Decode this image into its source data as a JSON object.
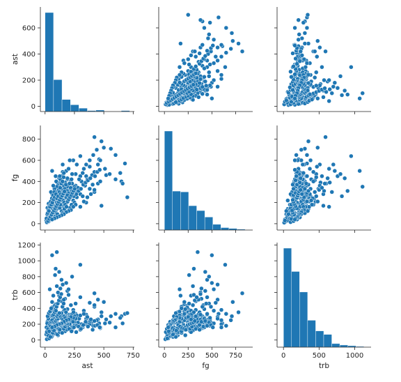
{
  "chart_data": {
    "type": "scatter",
    "variables": [
      "ast",
      "fg",
      "trb"
    ],
    "axis_labels": {
      "ast": "ast",
      "fg": "fg",
      "trb": "trb"
    },
    "ranges": {
      "ast": {
        "lim": [
          -40,
          760
        ],
        "ticks": [
          0,
          250,
          500,
          750
        ],
        "row_ticks": [
          0,
          200,
          400,
          600
        ]
      },
      "fg": {
        "lim": [
          -60,
          930
        ],
        "ticks": [
          0,
          250,
          500,
          750
        ],
        "row_ticks": [
          0,
          200,
          400,
          600,
          800
        ]
      },
      "trb": {
        "lim": [
          -90,
          1230
        ],
        "ticks": [
          0,
          500,
          1000
        ],
        "row_ticks": [
          0,
          200,
          400,
          600,
          800,
          1000,
          1200
        ]
      }
    },
    "histograms": {
      "ast": {
        "edges": [
          0,
          72,
          144,
          216,
          288,
          360,
          432,
          504,
          576,
          648,
          720
        ],
        "counts": [
          205,
          66,
          25,
          14,
          7,
          2,
          3,
          0,
          0,
          2
        ]
      },
      "fg": {
        "edges": [
          0,
          85,
          170,
          255,
          340,
          425,
          510,
          595,
          680,
          765,
          850
        ],
        "counts": [
          122,
          48,
          47,
          30,
          24,
          16,
          7,
          3,
          2,
          1
        ]
      },
      "trb": {
        "edges": [
          0,
          113,
          226,
          339,
          452,
          565,
          678,
          791,
          904,
          1017,
          1130
        ],
        "counts": [
          140,
          107,
          78,
          38,
          23,
          18,
          5,
          3,
          2,
          1
        ]
      }
    },
    "points": [
      [
        110,
        220,
        60
      ],
      [
        200,
        330,
        210
      ],
      [
        80,
        150,
        100
      ],
      [
        300,
        280,
        130
      ],
      [
        120,
        350,
        300
      ],
      [
        60,
        200,
        200
      ],
      [
        25,
        40,
        20
      ],
      [
        180,
        190,
        310
      ],
      [
        350,
        450,
        320
      ],
      [
        450,
        380,
        260
      ],
      [
        90,
        450,
        330
      ],
      [
        160,
        230,
        370
      ],
      [
        230,
        260,
        130
      ],
      [
        40,
        110,
        110
      ],
      [
        140,
        120,
        300
      ],
      [
        260,
        360,
        330
      ],
      [
        190,
        420,
        390
      ],
      [
        95,
        300,
        230
      ],
      [
        310,
        400,
        200
      ],
      [
        70,
        180,
        270
      ],
      [
        50,
        80,
        120
      ],
      [
        130,
        240,
        180
      ],
      [
        210,
        290,
        260
      ],
      [
        160,
        160,
        140
      ],
      [
        280,
        340,
        220
      ],
      [
        380,
        330,
        250
      ],
      [
        65,
        260,
        380
      ],
      [
        35,
        70,
        150
      ],
      [
        100,
        140,
        350
      ],
      [
        150,
        310,
        240
      ],
      [
        240,
        220,
        170
      ],
      [
        55,
        130,
        300
      ],
      [
        120,
        280,
        560
      ],
      [
        170,
        390,
        520
      ],
      [
        220,
        410,
        440
      ],
      [
        90,
        210,
        450
      ],
      [
        140,
        330,
        490
      ],
      [
        70,
        170,
        560
      ],
      [
        190,
        430,
        620
      ],
      [
        110,
        380,
        600
      ],
      [
        260,
        470,
        460
      ],
      [
        80,
        240,
        430
      ],
      [
        300,
        450,
        540
      ],
      [
        160,
        360,
        510
      ],
      [
        60,
        210,
        480
      ],
      [
        200,
        310,
        570
      ],
      [
        130,
        390,
        650
      ],
      [
        100,
        300,
        680
      ],
      [
        180,
        500,
        720
      ],
      [
        140,
        450,
        760
      ],
      [
        85,
        260,
        820
      ],
      [
        230,
        470,
        800
      ],
      [
        40,
        160,
        640
      ],
      [
        120,
        430,
        860
      ],
      [
        90,
        310,
        900
      ],
      [
        60,
        500,
        1070
      ],
      [
        100,
        350,
        1110
      ],
      [
        300,
        640,
        950
      ],
      [
        150,
        560,
        700
      ],
      [
        200,
        520,
        640
      ],
      [
        450,
        560,
        510
      ],
      [
        380,
        540,
        470
      ],
      [
        420,
        490,
        420
      ],
      [
        500,
        720,
        480
      ],
      [
        420,
        820,
        590
      ],
      [
        480,
        780,
        350
      ],
      [
        560,
        710,
        300
      ],
      [
        600,
        650,
        330
      ],
      [
        680,
        570,
        330
      ],
      [
        650,
        400,
        300
      ],
      [
        700,
        250,
        340
      ],
      [
        480,
        170,
        300
      ],
      [
        420,
        300,
        440
      ],
      [
        350,
        200,
        240
      ],
      [
        470,
        400,
        150
      ],
      [
        520,
        460,
        260
      ],
      [
        460,
        610,
        210
      ],
      [
        400,
        460,
        230
      ],
      [
        330,
        520,
        370
      ],
      [
        270,
        560,
        290
      ],
      [
        240,
        600,
        380
      ],
      [
        210,
        600,
        250
      ],
      [
        150,
        490,
        220
      ],
      [
        130,
        420,
        170
      ],
      [
        110,
        250,
        160
      ],
      [
        60,
        60,
        50
      ],
      [
        30,
        20,
        30
      ],
      [
        15,
        10,
        10
      ],
      [
        10,
        30,
        70
      ],
      [
        45,
        50,
        90
      ],
      [
        70,
        100,
        160
      ],
      [
        90,
        120,
        80
      ],
      [
        20,
        60,
        130
      ],
      [
        55,
        90,
        40
      ],
      [
        80,
        70,
        180
      ],
      [
        35,
        140,
        60
      ],
      [
        150,
        100,
        210
      ],
      [
        170,
        270,
        110
      ],
      [
        250,
        200,
        190
      ],
      [
        230,
        330,
        160
      ],
      [
        160,
        210,
        250
      ],
      [
        210,
        150,
        200
      ],
      [
        270,
        250,
        310
      ],
      [
        120,
        170,
        120
      ],
      [
        100,
        190,
        230
      ],
      [
        140,
        270,
        340
      ],
      [
        190,
        240,
        240
      ],
      [
        230,
        380,
        140
      ],
      [
        270,
        300,
        180
      ],
      [
        320,
        260,
        160
      ],
      [
        340,
        360,
        200
      ],
      [
        360,
        420,
        220
      ],
      [
        80,
        330,
        260
      ],
      [
        60,
        280,
        190
      ],
      [
        20,
        150,
        230
      ],
      [
        30,
        190,
        180
      ],
      [
        50,
        300,
        120
      ],
      [
        70,
        360,
        190
      ],
      [
        95,
        400,
        220
      ],
      [
        125,
        450,
        200
      ],
      [
        160,
        480,
        260
      ],
      [
        190,
        350,
        170
      ],
      [
        225,
        420,
        280
      ],
      [
        250,
        350,
        230
      ],
      [
        290,
        420,
        270
      ],
      [
        320,
        480,
        180
      ],
      [
        350,
        560,
        270
      ],
      [
        380,
        600,
        200
      ],
      [
        410,
        650,
        180
      ],
      [
        440,
        700,
        250
      ],
      [
        470,
        600,
        160
      ],
      [
        510,
        520,
        210
      ],
      [
        550,
        470,
        220
      ],
      [
        600,
        420,
        160
      ],
      [
        640,
        480,
        280
      ],
      [
        660,
        380,
        210
      ],
      [
        35,
        30,
        20
      ],
      [
        25,
        80,
        60
      ],
      [
        45,
        120,
        40
      ],
      [
        65,
        140,
        90
      ],
      [
        85,
        110,
        130
      ],
      [
        105,
        90,
        70
      ],
      [
        125,
        150,
        100
      ],
      [
        145,
        180,
        90
      ],
      [
        165,
        140,
        150
      ],
      [
        185,
        200,
        130
      ],
      [
        205,
        230,
        140
      ],
      [
        225,
        180,
        110
      ],
      [
        245,
        260,
        160
      ],
      [
        265,
        280,
        100
      ],
      [
        285,
        310,
        170
      ],
      [
        305,
        330,
        140
      ],
      [
        325,
        370,
        190
      ],
      [
        345,
        390,
        230
      ],
      [
        365,
        410,
        170
      ],
      [
        385,
        430,
        240
      ],
      [
        405,
        370,
        130
      ],
      [
        425,
        450,
        180
      ],
      [
        445,
        490,
        190
      ],
      [
        465,
        510,
        160
      ],
      [
        12,
        50,
        160
      ],
      [
        18,
        90,
        210
      ],
      [
        28,
        130,
        270
      ],
      [
        38,
        170,
        320
      ],
      [
        48,
        210,
        360
      ],
      [
        58,
        240,
        410
      ],
      [
        68,
        270,
        280
      ],
      [
        78,
        300,
        330
      ],
      [
        88,
        220,
        390
      ],
      [
        98,
        180,
        420
      ],
      [
        108,
        260,
        460
      ],
      [
        118,
        320,
        500
      ],
      [
        128,
        340,
        540
      ],
      [
        138,
        380,
        580
      ],
      [
        148,
        400,
        420
      ],
      [
        158,
        440,
        460
      ],
      [
        168,
        330,
        380
      ],
      [
        178,
        370,
        350
      ],
      [
        188,
        310,
        300
      ],
      [
        198,
        290,
        290
      ],
      [
        208,
        380,
        320
      ],
      [
        218,
        340,
        270
      ],
      [
        228,
        310,
        260
      ],
      [
        238,
        290,
        230
      ],
      [
        40,
        40,
        190
      ],
      [
        50,
        60,
        230
      ],
      [
        60,
        90,
        250
      ],
      [
        70,
        120,
        220
      ],
      [
        80,
        140,
        210
      ],
      [
        90,
        160,
        240
      ],
      [
        100,
        200,
        260
      ],
      [
        110,
        230,
        270
      ],
      [
        120,
        200,
        190
      ],
      [
        130,
        180,
        170
      ],
      [
        140,
        220,
        160
      ],
      [
        150,
        250,
        150
      ],
      [
        160,
        270,
        140
      ],
      [
        170,
        290,
        170
      ],
      [
        180,
        250,
        200
      ],
      [
        190,
        270,
        210
      ],
      [
        22,
        100,
        300
      ],
      [
        32,
        120,
        340
      ],
      [
        42,
        160,
        360
      ],
      [
        52,
        180,
        400
      ],
      [
        62,
        200,
        310
      ],
      [
        72,
        230,
        320
      ],
      [
        82,
        250,
        350
      ],
      [
        92,
        280,
        370
      ],
      [
        102,
        240,
        300
      ],
      [
        112,
        260,
        320
      ],
      [
        122,
        300,
        340
      ],
      [
        132,
        280,
        290
      ],
      [
        142,
        240,
        270
      ],
      [
        152,
        220,
        260
      ],
      [
        162,
        200,
        300
      ],
      [
        172,
        180,
        280
      ],
      [
        182,
        160,
        230
      ],
      [
        192,
        210,
        250
      ],
      [
        202,
        230,
        280
      ],
      [
        212,
        250,
        300
      ],
      [
        222,
        270,
        320
      ],
      [
        232,
        290,
        330
      ],
      [
        242,
        310,
        350
      ],
      [
        252,
        330,
        300
      ],
      [
        15,
        15,
        100
      ],
      [
        25,
        25,
        140
      ],
      [
        35,
        45,
        110
      ],
      [
        45,
        65,
        170
      ],
      [
        55,
        85,
        150
      ],
      [
        65,
        105,
        130
      ],
      [
        75,
        125,
        120
      ],
      [
        85,
        145,
        190
      ],
      [
        95,
        165,
        170
      ],
      [
        105,
        185,
        150
      ],
      [
        115,
        205,
        140
      ],
      [
        125,
        225,
        130
      ],
      [
        135,
        245,
        190
      ],
      [
        145,
        265,
        200
      ],
      [
        155,
        285,
        210
      ],
      [
        165,
        305,
        220
      ],
      [
        300,
        160,
        310
      ],
      [
        330,
        210,
        330
      ],
      [
        360,
        250,
        290
      ],
      [
        390,
        280,
        260
      ],
      [
        420,
        320,
        240
      ],
      [
        260,
        180,
        270
      ],
      [
        240,
        160,
        280
      ],
      [
        220,
        130,
        290
      ],
      [
        200,
        120,
        260
      ],
      [
        180,
        110,
        250
      ],
      [
        160,
        90,
        230
      ],
      [
        140,
        80,
        210
      ],
      [
        120,
        70,
        200
      ],
      [
        100,
        60,
        190
      ],
      [
        80,
        50,
        170
      ],
      [
        60,
        40,
        160
      ]
    ]
  }
}
